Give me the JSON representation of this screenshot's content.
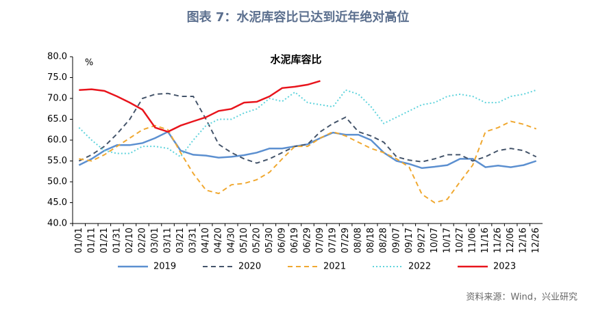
{
  "chart_data": {
    "type": "line",
    "title": "图表 7：水泥库容比已达到近年绝对高位",
    "subtitle": "水泥库容比",
    "y_label": "%",
    "source": "资料来源：Wind，兴业研究",
    "categories": [
      "01/01",
      "01/11",
      "01/21",
      "01/31",
      "02/10",
      "02/20",
      "03/01",
      "03/11",
      "03/21",
      "03/31",
      "04/10",
      "04/20",
      "04/30",
      "05/10",
      "05/20",
      "05/30",
      "06/09",
      "06/19",
      "06/29",
      "07/09",
      "07/19",
      "07/29",
      "08/08",
      "08/18",
      "08/28",
      "09/07",
      "09/17",
      "09/27",
      "10/07",
      "10/17",
      "10/27",
      "11/06",
      "11/16",
      "11/26",
      "12/06",
      "12/16",
      "12/26"
    ],
    "ylim": [
      40,
      80
    ],
    "yticks": [
      {
        "value": 40,
        "label": "40.0"
      },
      {
        "value": 45,
        "label": "45.0"
      },
      {
        "value": 50,
        "label": "50.0"
      },
      {
        "value": 55,
        "label": "55.0"
      },
      {
        "value": 60,
        "label": "60.0"
      },
      {
        "value": 65,
        "label": "65.0"
      },
      {
        "value": 70,
        "label": "70.0"
      },
      {
        "value": 75,
        "label": "75.0"
      },
      {
        "value": 80,
        "label": "80.0"
      }
    ],
    "grid": false,
    "legend": "bottom",
    "series": [
      {
        "name": "2019",
        "color": "#5b8fd0",
        "dash": "solid",
        "values": [
          54,
          55.5,
          57.5,
          58.8,
          58.8,
          59.3,
          60.5,
          62,
          57.5,
          56.5,
          56.3,
          55.8,
          56,
          56.4,
          57,
          58,
          58,
          58.5,
          59,
          60.5,
          61.8,
          61.3,
          61.3,
          60,
          57,
          55,
          54.3,
          53.3,
          53.6,
          54,
          55.5,
          55.5,
          53.5,
          53.9,
          53.5,
          54,
          55
        ]
      },
      {
        "name": "2020",
        "color": "#44546a",
        "dash": "dashed",
        "values": [
          55,
          56.5,
          58.5,
          61.5,
          65,
          70,
          71,
          71.2,
          70.5,
          70.5,
          65,
          59,
          57,
          55.5,
          54.5,
          55.5,
          57,
          58.5,
          59,
          62,
          64,
          65.5,
          62,
          61,
          59.5,
          56,
          55.2,
          54.8,
          55.5,
          56.5,
          56.5,
          55,
          56,
          57.5,
          58,
          57.5,
          56
        ]
      },
      {
        "name": "2021",
        "color": "#f0a830",
        "dash": "dashed",
        "values": [
          55.5,
          55,
          56.5,
          58.5,
          60.5,
          62.5,
          63.5,
          62.5,
          57,
          52,
          48,
          47.2,
          49.3,
          49.6,
          50.5,
          52.3,
          55.5,
          58.5,
          58.5,
          60.5,
          62,
          61,
          59.5,
          58,
          57,
          55.5,
          53.5,
          47,
          45,
          45.8,
          50,
          54,
          62,
          63,
          64.5,
          63.8,
          62.7
        ]
      },
      {
        "name": "2022",
        "color": "#5ed3dc",
        "dash": "dotted",
        "values": [
          63,
          60,
          57.5,
          56.8,
          56.8,
          58.5,
          58.5,
          58,
          56,
          60,
          63.5,
          65,
          65,
          66.5,
          67.5,
          70,
          69.3,
          71.5,
          69,
          68.5,
          68,
          72,
          71,
          68,
          64,
          65.5,
          67,
          68.5,
          69,
          70.5,
          71,
          70.5,
          69,
          69,
          70.5,
          71,
          72
        ]
      },
      {
        "name": "2023",
        "color": "#e8141c",
        "dash": "solid",
        "values": [
          72,
          72.2,
          71.8,
          70.5,
          69,
          67.3,
          63,
          62,
          63.5,
          64.5,
          65.5,
          67,
          67.5,
          69,
          69.2,
          70.5,
          72.5,
          72.8,
          73.3,
          74.2,
          null,
          null,
          null,
          null,
          null,
          null,
          null,
          null,
          null,
          null,
          null,
          null,
          null,
          null,
          null,
          null,
          null
        ]
      }
    ]
  }
}
